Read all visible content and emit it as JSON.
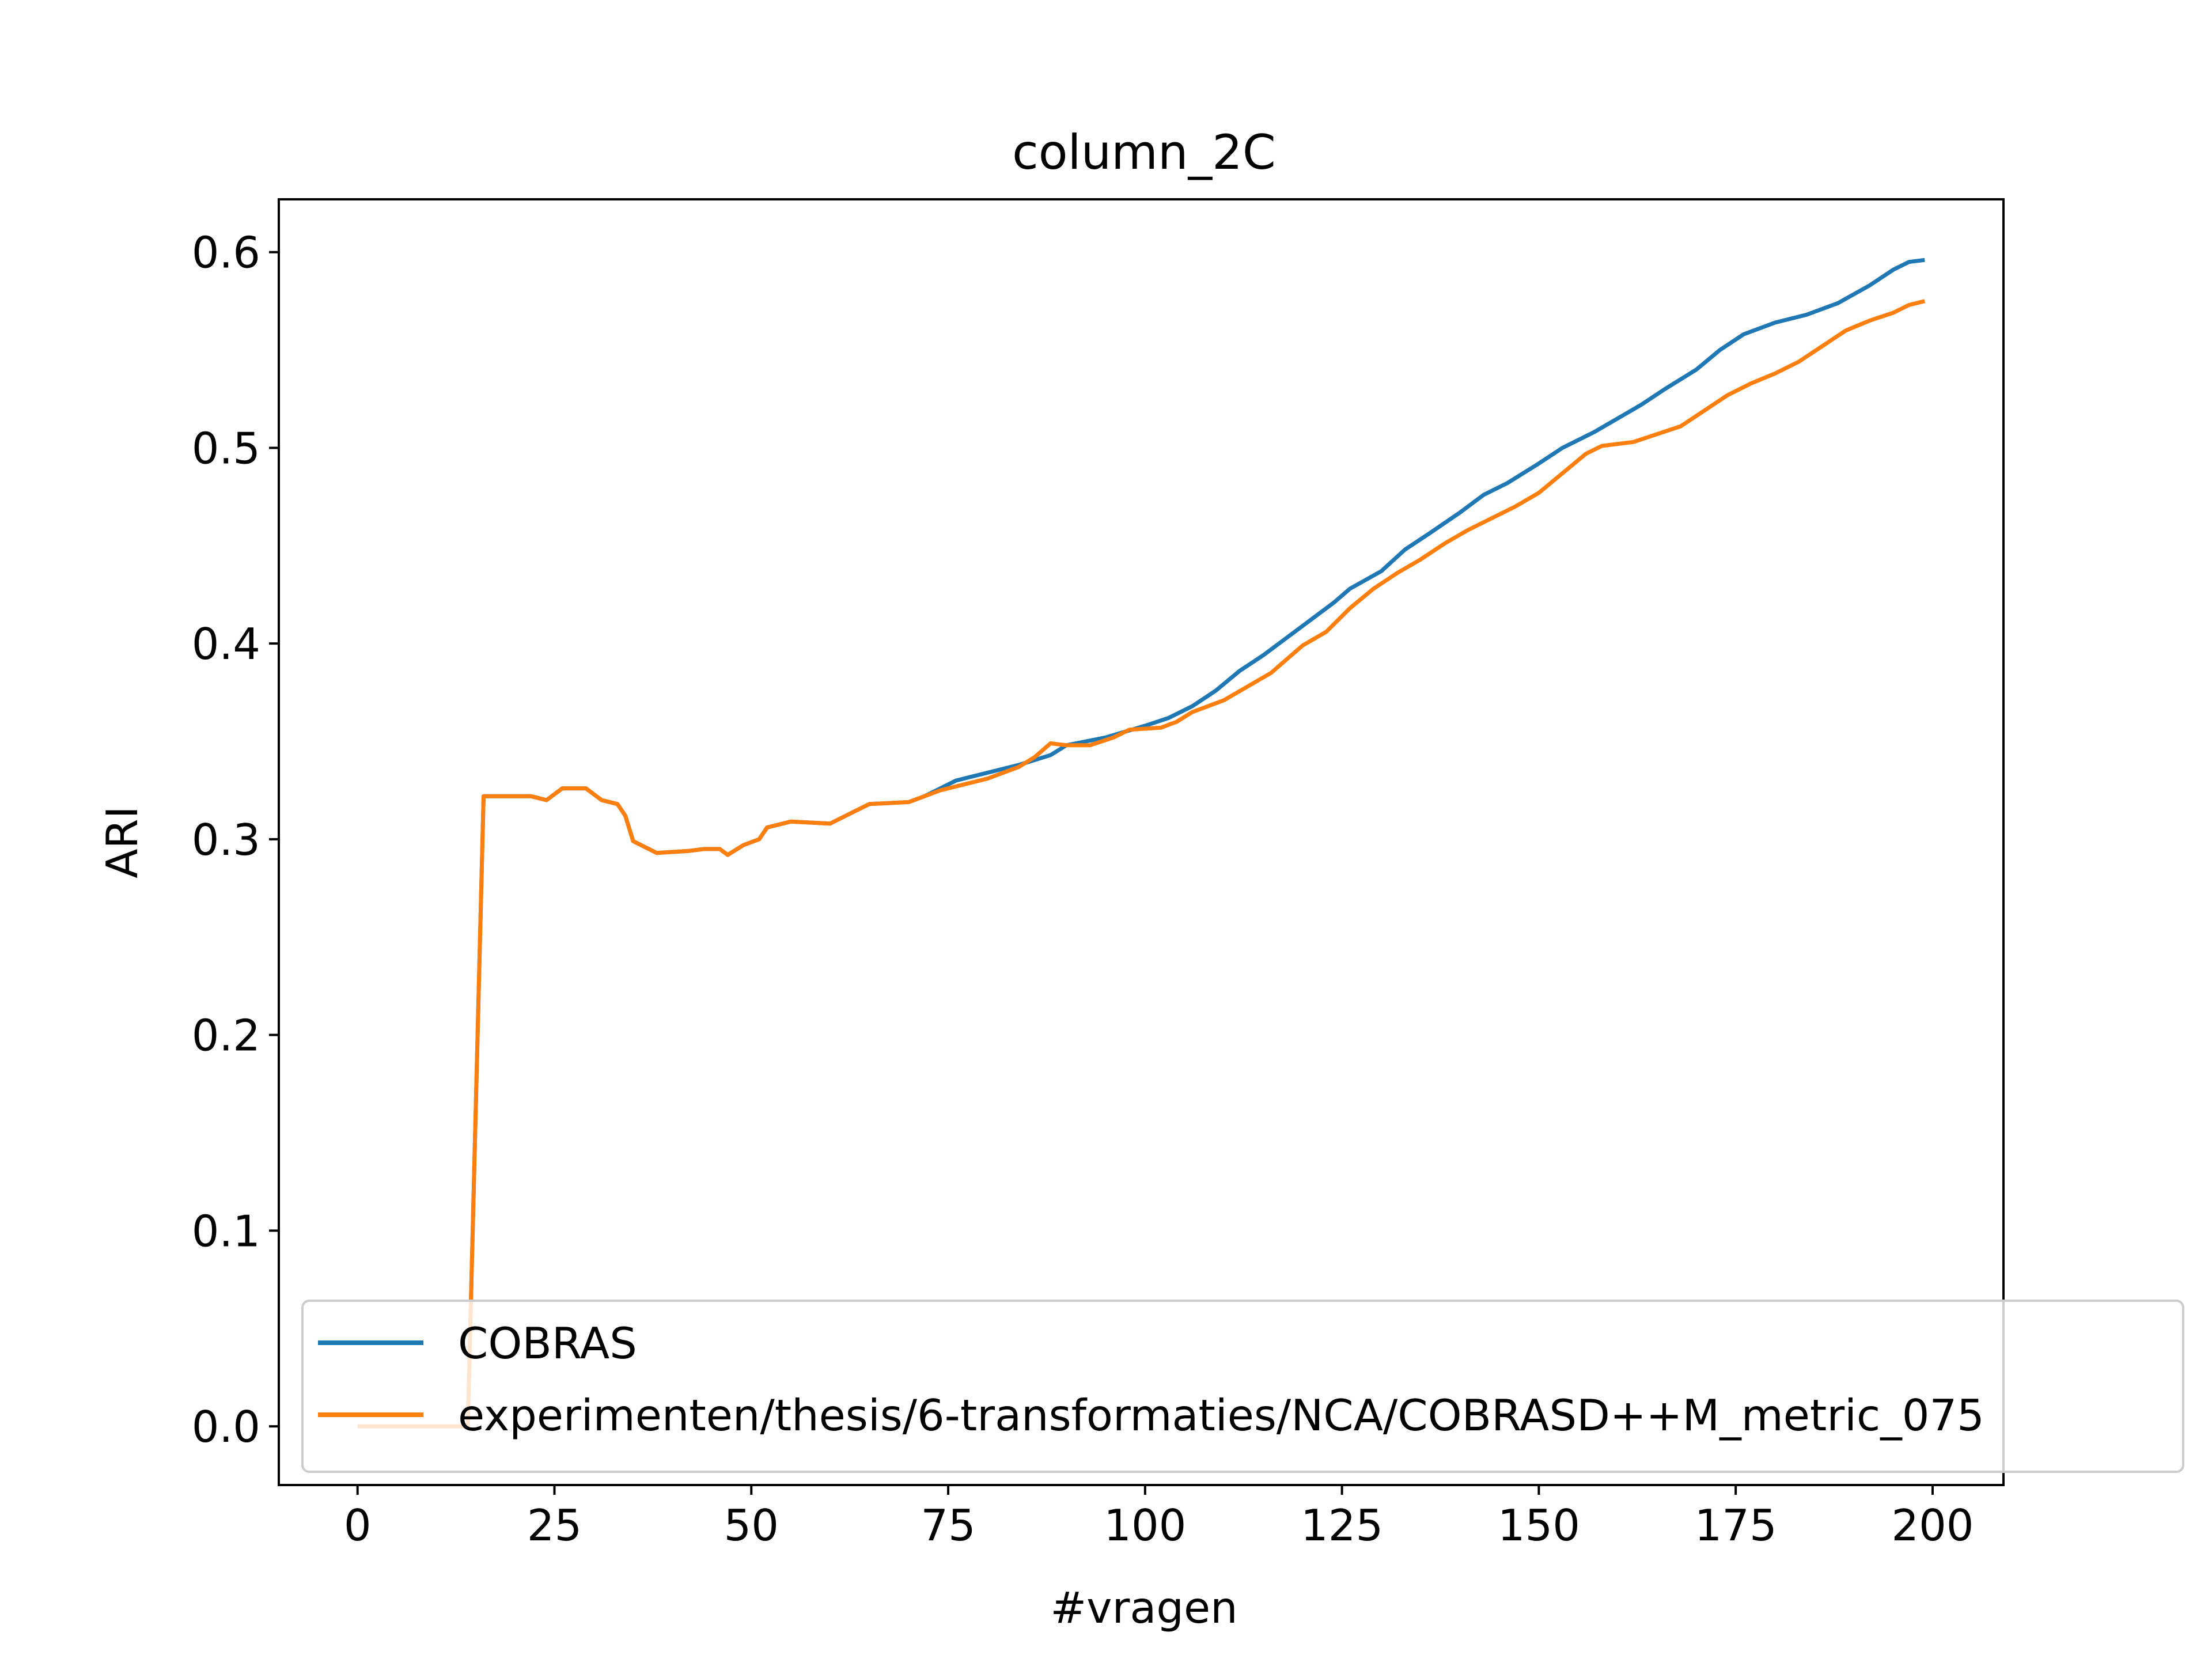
{
  "chart_data": {
    "type": "line",
    "title": "column_2C",
    "xlabel": "#vragen",
    "ylabel": "ARI",
    "xlim": [
      -10,
      209
    ],
    "ylim": [
      -0.03,
      0.627
    ],
    "xticks": [
      0,
      25,
      50,
      75,
      100,
      125,
      150,
      175,
      200
    ],
    "yticks": [
      0.0,
      0.1,
      0.2,
      0.3,
      0.4,
      0.5,
      0.6
    ],
    "grid": false,
    "legend_position": "lower right",
    "series": [
      {
        "name": "COBRAS",
        "color": "#1f77b4",
        "points": [
          [
            0,
            0.0
          ],
          [
            14,
            0.0
          ],
          [
            16,
            0.322
          ],
          [
            22,
            0.322
          ],
          [
            24,
            0.32
          ],
          [
            26,
            0.326
          ],
          [
            29,
            0.326
          ],
          [
            31,
            0.32
          ],
          [
            33,
            0.318
          ],
          [
            34,
            0.312
          ],
          [
            35,
            0.299
          ],
          [
            37,
            0.295
          ],
          [
            38,
            0.293
          ],
          [
            42,
            0.294
          ],
          [
            44,
            0.295
          ],
          [
            46,
            0.295
          ],
          [
            47,
            0.292
          ],
          [
            49,
            0.297
          ],
          [
            51,
            0.3
          ],
          [
            52,
            0.306
          ],
          [
            55,
            0.309
          ],
          [
            60,
            0.308
          ],
          [
            63,
            0.314
          ],
          [
            65,
            0.318
          ],
          [
            70,
            0.319
          ],
          [
            72,
            0.322
          ],
          [
            74,
            0.326
          ],
          [
            76,
            0.33
          ],
          [
            80,
            0.334
          ],
          [
            84,
            0.338
          ],
          [
            88,
            0.343
          ],
          [
            90,
            0.348
          ],
          [
            95,
            0.352
          ],
          [
            100,
            0.358
          ],
          [
            103,
            0.362
          ],
          [
            106,
            0.368
          ],
          [
            109,
            0.376
          ],
          [
            112,
            0.386
          ],
          [
            115,
            0.394
          ],
          [
            118,
            0.403
          ],
          [
            121,
            0.412
          ],
          [
            124,
            0.421
          ],
          [
            126,
            0.428
          ],
          [
            130,
            0.437
          ],
          [
            133,
            0.448
          ],
          [
            136,
            0.456
          ],
          [
            140,
            0.467
          ],
          [
            143,
            0.476
          ],
          [
            146,
            0.482
          ],
          [
            150,
            0.492
          ],
          [
            153,
            0.5
          ],
          [
            157,
            0.508
          ],
          [
            160,
            0.515
          ],
          [
            163,
            0.522
          ],
          [
            166,
            0.53
          ],
          [
            170,
            0.54
          ],
          [
            173,
            0.55
          ],
          [
            176,
            0.558
          ],
          [
            180,
            0.564
          ],
          [
            184,
            0.568
          ],
          [
            188,
            0.574
          ],
          [
            192,
            0.583
          ],
          [
            195,
            0.591
          ],
          [
            197,
            0.595
          ],
          [
            199,
            0.596
          ]
        ]
      },
      {
        "name": "experimenten/thesis/6-transformaties/NCA/COBRASD++M_metric_075",
        "color": "#ff7f0e",
        "points": [
          [
            0,
            0.0
          ],
          [
            14,
            0.0
          ],
          [
            16,
            0.322
          ],
          [
            22,
            0.322
          ],
          [
            24,
            0.32
          ],
          [
            26,
            0.326
          ],
          [
            29,
            0.326
          ],
          [
            31,
            0.32
          ],
          [
            33,
            0.318
          ],
          [
            34,
            0.312
          ],
          [
            35,
            0.299
          ],
          [
            37,
            0.295
          ],
          [
            38,
            0.293
          ],
          [
            42,
            0.294
          ],
          [
            44,
            0.295
          ],
          [
            46,
            0.295
          ],
          [
            47,
            0.292
          ],
          [
            49,
            0.297
          ],
          [
            51,
            0.3
          ],
          [
            52,
            0.306
          ],
          [
            55,
            0.309
          ],
          [
            60,
            0.308
          ],
          [
            63,
            0.314
          ],
          [
            65,
            0.318
          ],
          [
            70,
            0.319
          ],
          [
            72,
            0.322
          ],
          [
            74,
            0.325
          ],
          [
            76,
            0.327
          ],
          [
            80,
            0.331
          ],
          [
            84,
            0.337
          ],
          [
            86,
            0.342
          ],
          [
            88,
            0.349
          ],
          [
            90,
            0.348
          ],
          [
            93,
            0.348
          ],
          [
            96,
            0.352
          ],
          [
            98,
            0.356
          ],
          [
            102,
            0.357
          ],
          [
            104,
            0.36
          ],
          [
            106,
            0.365
          ],
          [
            110,
            0.371
          ],
          [
            113,
            0.378
          ],
          [
            116,
            0.385
          ],
          [
            118,
            0.392
          ],
          [
            120,
            0.399
          ],
          [
            123,
            0.406
          ],
          [
            126,
            0.418
          ],
          [
            129,
            0.428
          ],
          [
            132,
            0.436
          ],
          [
            135,
            0.443
          ],
          [
            138,
            0.451
          ],
          [
            141,
            0.458
          ],
          [
            144,
            0.464
          ],
          [
            147,
            0.47
          ],
          [
            150,
            0.477
          ],
          [
            153,
            0.487
          ],
          [
            156,
            0.497
          ],
          [
            158,
            0.501
          ],
          [
            162,
            0.503
          ],
          [
            165,
            0.507
          ],
          [
            168,
            0.511
          ],
          [
            171,
            0.519
          ],
          [
            174,
            0.527
          ],
          [
            177,
            0.533
          ],
          [
            180,
            0.538
          ],
          [
            183,
            0.544
          ],
          [
            186,
            0.552
          ],
          [
            189,
            0.56
          ],
          [
            192,
            0.565
          ],
          [
            195,
            0.569
          ],
          [
            197,
            0.573
          ],
          [
            199,
            0.575
          ]
        ]
      }
    ]
  }
}
